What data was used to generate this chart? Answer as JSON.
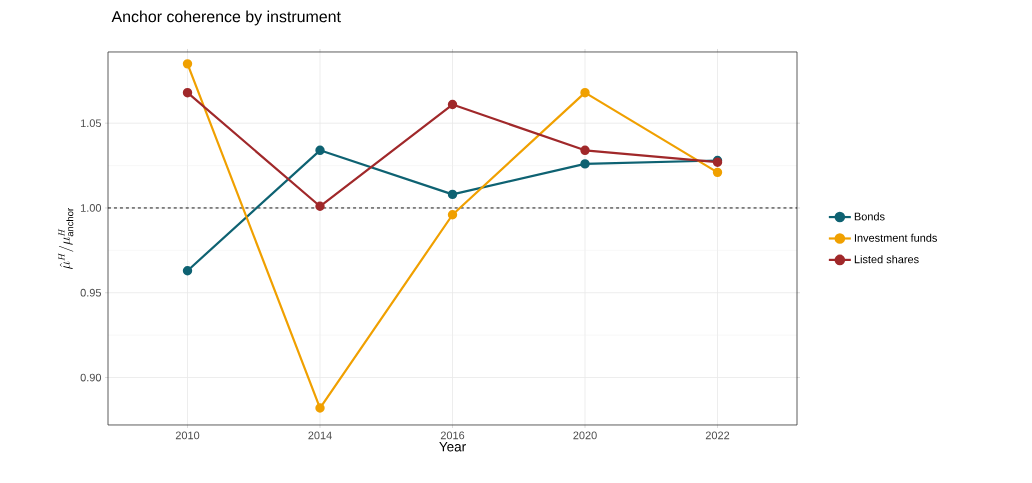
{
  "chart_data": {
    "type": "line",
    "title": "Anchor coherence by instrument",
    "xlabel": "Year",
    "ylabel": "\\hat{\\mu}^{H}/\\mu^{H}_{\\mathrm{anchor}}",
    "categories": [
      "2010",
      "2014",
      "2016",
      "2020",
      "2022"
    ],
    "series": [
      {
        "name": "Bonds",
        "color": "#0e6272",
        "values": [
          0.963,
          1.034,
          1.008,
          1.026,
          1.028
        ]
      },
      {
        "name": "Investment funds",
        "color": "#f0a000",
        "values": [
          1.085,
          0.882,
          0.996,
          1.068,
          1.021
        ]
      },
      {
        "name": "Listed shares",
        "color": "#a0282a",
        "values": [
          1.068,
          1.001,
          1.061,
          1.034,
          1.027
        ]
      }
    ],
    "ylim": [
      0.872,
      1.092
    ],
    "yticks": [
      {
        "value": 0.9,
        "label": "0.90"
      },
      {
        "value": 0.95,
        "label": "0.95"
      },
      {
        "value": 1.0,
        "label": "1.00"
      },
      {
        "value": 1.05,
        "label": "1.05"
      }
    ],
    "ref_lines": [
      {
        "axis": "y",
        "value": 1.0,
        "color": "#000000",
        "line_style": "dashed"
      }
    ],
    "grid": true,
    "legend": "right",
    "marker": "circle",
    "line_style": "solid"
  }
}
